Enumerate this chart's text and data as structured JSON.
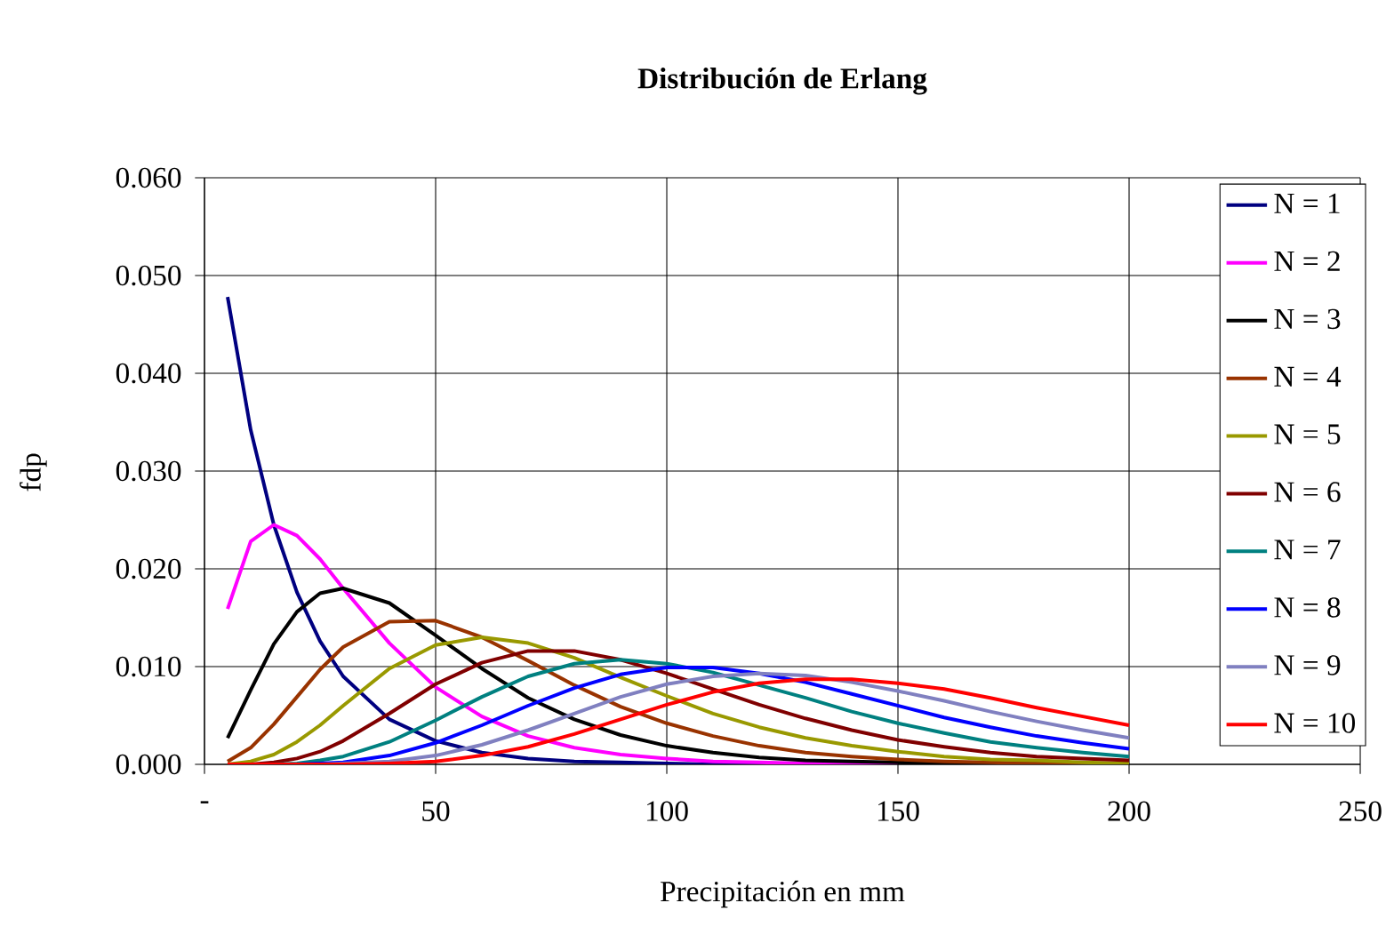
{
  "chart_data": {
    "type": "line",
    "title": "Distribución de Erlang",
    "xlabel": "Precipitación en mm",
    "ylabel": "fdp",
    "x": [
      5,
      10,
      15,
      20,
      25,
      30,
      40,
      50,
      60,
      70,
      80,
      90,
      100,
      110,
      120,
      130,
      140,
      150,
      160,
      170,
      180,
      190,
      200
    ],
    "xlim": [
      0,
      250
    ],
    "xticks": [
      {
        "value": 0,
        "label": "-"
      },
      50,
      100,
      150,
      200,
      250
    ],
    "ylim": [
      0,
      0.06
    ],
    "yticks": [
      {
        "value": 0,
        "label": "0.000"
      },
      {
        "value": 0.01,
        "label": "0.010"
      },
      {
        "value": 0.02,
        "label": "0.020"
      },
      {
        "value": 0.03,
        "label": "0.030"
      },
      {
        "value": 0.04,
        "label": "0.040"
      },
      {
        "value": 0.05,
        "label": "0.050"
      },
      {
        "value": 0.06,
        "label": "0.060"
      }
    ],
    "grid": true,
    "legend": "top right",
    "marker": "none",
    "line_style": "solid",
    "series": [
      {
        "name": "N = 1",
        "color": "#000080",
        "values": [
          0.0478,
          0.0342,
          0.0245,
          0.0176,
          0.0126,
          0.009,
          0.0046,
          0.0024,
          0.0012,
          0.0006,
          0.0003,
          0.0002,
          0.0001,
          0,
          0,
          0,
          null,
          null,
          null,
          null,
          null,
          null,
          null
        ]
      },
      {
        "name": "N = 2",
        "color": "#ff00ff",
        "values": [
          0.0159,
          0.0228,
          0.0245,
          0.0234,
          0.021,
          0.018,
          0.0124,
          0.0079,
          0.0049,
          0.0029,
          0.0017,
          0.001,
          0.0006,
          0.0003,
          0.0002,
          0.0001,
          0.0001,
          0,
          null,
          null,
          null,
          null,
          null
        ]
      },
      {
        "name": "N = 3",
        "color": "#000000",
        "values": [
          0.0027,
          0.0076,
          0.0123,
          0.0156,
          0.0175,
          0.018,
          0.0165,
          0.0132,
          0.0098,
          0.0068,
          0.0046,
          0.003,
          0.0019,
          0.0012,
          0.0007,
          0.0004,
          0.0003,
          0.0002,
          0.0001,
          0.0001,
          0,
          0,
          0
        ]
      },
      {
        "name": "N = 4",
        "color": "#993300",
        "values": [
          0.0003,
          0.0017,
          0.0041,
          0.0069,
          0.0097,
          0.012,
          0.0146,
          0.0147,
          0.013,
          0.0106,
          0.0081,
          0.0059,
          0.0042,
          0.0029,
          0.0019,
          0.0012,
          0.0008,
          0.0005,
          0.0003,
          0.0002,
          0.0001,
          0.0001,
          0
        ]
      },
      {
        "name": "N = 5",
        "color": "#999900",
        "values": [
          0,
          0.0003,
          0.001,
          0.0023,
          0.004,
          0.006,
          0.0098,
          0.0122,
          0.013,
          0.0124,
          0.0109,
          0.0089,
          0.007,
          0.0052,
          0.0038,
          0.0027,
          0.0019,
          0.0013,
          0.0008,
          0.0005,
          0.0004,
          0.0002,
          0.0001
        ]
      },
      {
        "name": "N = 6",
        "color": "#800000",
        "values": [
          0,
          0,
          0.0002,
          0.0006,
          0.0013,
          0.0024,
          0.0052,
          0.0082,
          0.0104,
          0.0116,
          0.0116,
          0.0107,
          0.0093,
          0.0077,
          0.0061,
          0.0047,
          0.0035,
          0.0025,
          0.0018,
          0.0012,
          0.0008,
          0.0006,
          0.0004
        ]
      },
      {
        "name": "N = 7",
        "color": "#008080",
        "values": [
          0,
          0,
          0,
          0.0001,
          0.0004,
          0.0008,
          0.0023,
          0.0045,
          0.0069,
          0.009,
          0.0103,
          0.0107,
          0.0103,
          0.0094,
          0.0081,
          0.0068,
          0.0054,
          0.0042,
          0.0032,
          0.0023,
          0.0017,
          0.0012,
          0.0008
        ]
      },
      {
        "name": "N = 8",
        "color": "#0000ff",
        "values": [
          null,
          null,
          0,
          0,
          0.0001,
          0.0002,
          0.0009,
          0.0022,
          0.004,
          0.006,
          0.0078,
          0.0092,
          0.0099,
          0.0099,
          0.0093,
          0.0084,
          0.0072,
          0.006,
          0.0048,
          0.0038,
          0.0029,
          0.0022,
          0.0016
        ]
      },
      {
        "name": "N = 9",
        "color": "#8080c0",
        "values": [
          0,
          0,
          0,
          0,
          0,
          0.0001,
          0.0003,
          0.0009,
          0.002,
          0.0035,
          0.0052,
          0.0069,
          0.0082,
          0.009,
          0.0093,
          0.0091,
          0.0084,
          0.0075,
          0.0065,
          0.0054,
          0.0044,
          0.0035,
          0.0027
        ]
      },
      {
        "name": "N = 10",
        "color": "#ff0000",
        "values": [
          0,
          0,
          0,
          0,
          0,
          0,
          0.0001,
          0.0003,
          0.0009,
          0.0018,
          0.0031,
          0.0046,
          0.0061,
          0.0074,
          0.0083,
          0.0087,
          0.0087,
          0.0083,
          0.0077,
          0.0068,
          0.0058,
          0.0049,
          0.004
        ]
      }
    ]
  }
}
